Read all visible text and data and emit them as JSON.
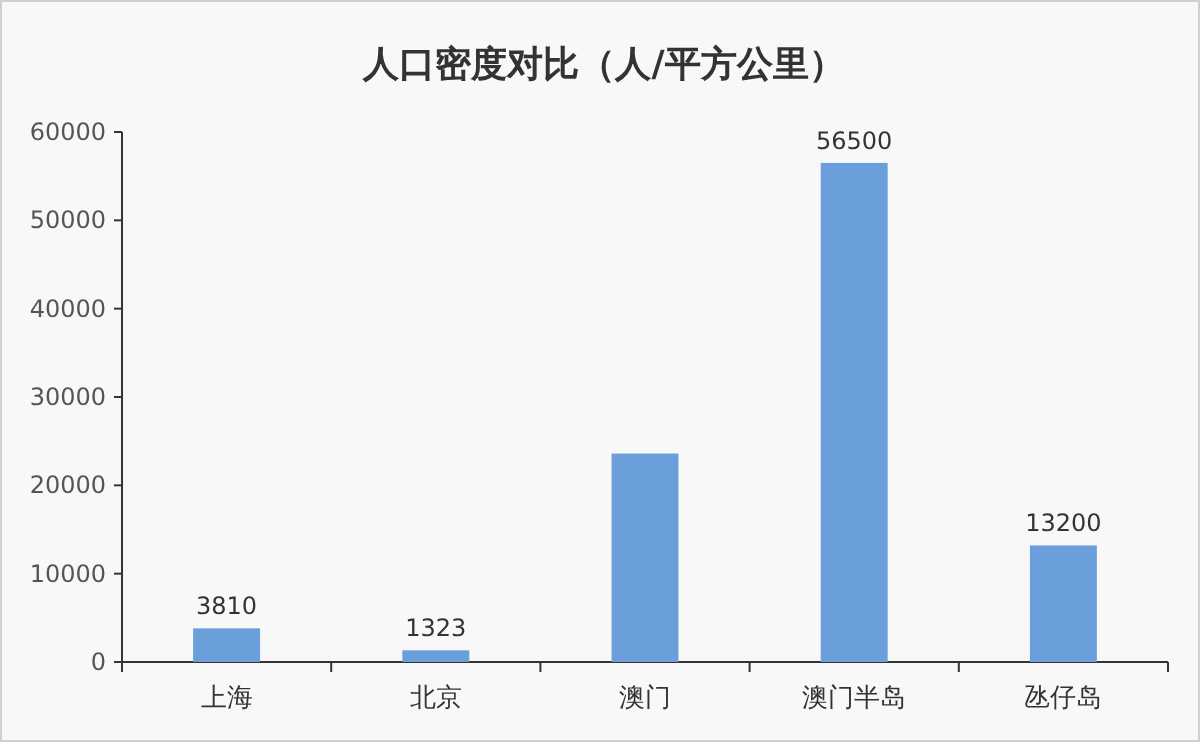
{
  "chart_data": {
    "type": "bar",
    "title": "人口密度对比（人/平方公里）",
    "categories": [
      "上海",
      "北京",
      "澳门",
      "澳门半岛",
      "氹仔岛"
    ],
    "values": [
      3810,
      1323,
      23600,
      56500,
      13200
    ],
    "value_labels": [
      "3810",
      "1323",
      null,
      "56500",
      "13200"
    ],
    "color": "#6b9fdb",
    "ylim": [
      0,
      60000
    ],
    "yticks": [
      0,
      10000,
      20000,
      30000,
      40000,
      50000,
      60000
    ],
    "grid": false
  }
}
